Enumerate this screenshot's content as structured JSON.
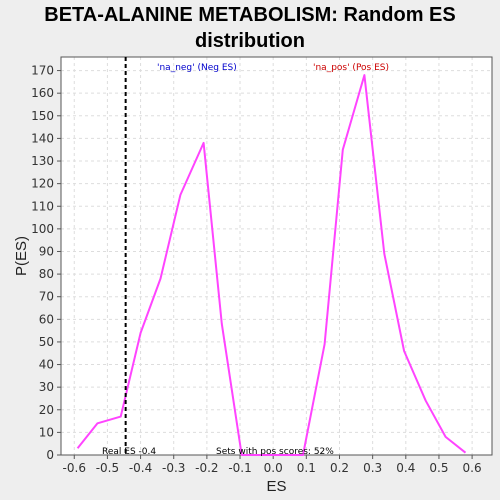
{
  "chart_data": {
    "type": "line",
    "title_lines": [
      "BETA-ALANINE METABOLISM: Random ES",
      "distribution"
    ],
    "xlabel": "ES",
    "ylabel": "P(ES)",
    "xlim": [
      -0.64,
      0.66
    ],
    "ylim": [
      0,
      176
    ],
    "x_ticks": [
      -0.6,
      -0.5,
      -0.4,
      -0.3,
      -0.2,
      -0.1,
      0.0,
      0.1,
      0.2,
      0.3,
      0.4,
      0.5,
      0.6
    ],
    "x_tick_labels": [
      "-0.6",
      "-0.5",
      "-0.4",
      "-0.3",
      "-0.2",
      "-0.1",
      "0.0",
      "0.1",
      "0.2",
      "0.3",
      "0.4",
      "0.5",
      "0.6"
    ],
    "y_ticks": [
      0,
      10,
      20,
      30,
      40,
      50,
      60,
      70,
      80,
      90,
      100,
      110,
      120,
      130,
      140,
      150,
      160,
      170
    ],
    "y_tick_labels": [
      "0",
      "10",
      "20",
      "30",
      "40",
      "50",
      "60",
      "70",
      "80",
      "90",
      "100",
      "110",
      "120",
      "130",
      "140",
      "150",
      "160",
      "170"
    ],
    "grid": true,
    "series": [
      {
        "color": "#ff44ff",
        "x": [
          -0.59,
          -0.53,
          -0.46,
          -0.4,
          -0.34,
          -0.28,
          -0.21,
          -0.155,
          -0.095,
          0.09,
          0.155,
          0.21,
          0.275,
          0.335,
          0.395,
          0.46,
          0.52,
          0.58
        ],
        "y": [
          3,
          14,
          17,
          54,
          78,
          115,
          138,
          58,
          0,
          0,
          49,
          135,
          168,
          89,
          46,
          24,
          8,
          1
        ]
      }
    ],
    "real_es": -0.445,
    "annotations": {
      "neg_label": "'na_neg' (Neg ES)",
      "pos_label": "'na_pos' (Pos ES)",
      "real_es_label": "Real ES -0.4",
      "pos_scores_label": "Sets with pos scores: 52%"
    },
    "colors": {
      "neg": "#0000cc",
      "pos": "#cc0000",
      "real_es_line": "#000000",
      "grid": "#dddddd",
      "plot_bg": "#ffffff"
    }
  }
}
